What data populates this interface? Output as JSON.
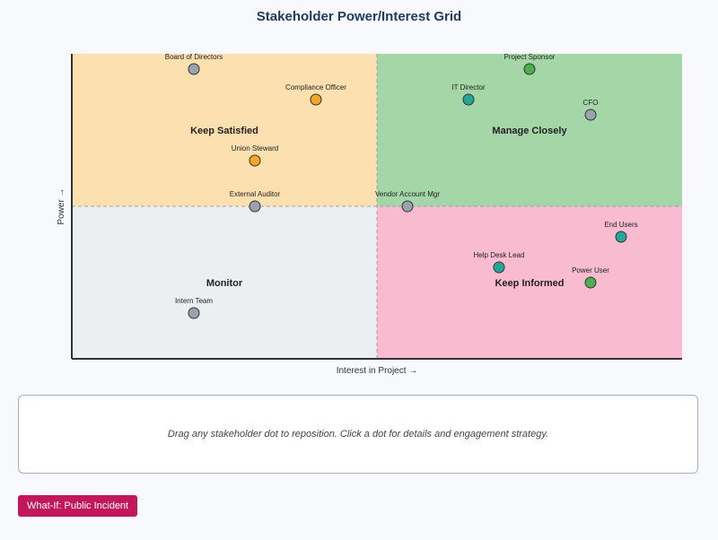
{
  "title": "Stakeholder Power/Interest Grid",
  "axes": {
    "x_label": "Interest in Project →",
    "y_label": "Power →",
    "x_range": [
      0,
      1
    ],
    "y_range": [
      0,
      1
    ]
  },
  "quadrants": [
    {
      "id": "keep-satisfied",
      "label": "Keep Satisfied",
      "color": "#fde0b0"
    },
    {
      "id": "manage-closely",
      "label": "Manage Closely",
      "color": "#a5d6a7"
    },
    {
      "id": "monitor",
      "label": "Monitor",
      "color": "#eceff1"
    },
    {
      "id": "keep-informed",
      "label": "Keep Informed",
      "color": "#f8bbd0"
    }
  ],
  "colors": {
    "gray": "#9aa3ad",
    "orange": "#f5a623",
    "green": "#4caf50",
    "teal": "#26a69a"
  },
  "stakeholders": [
    {
      "name": "Board of Directors",
      "interest": 0.4,
      "power": 0.95,
      "color": "gray"
    },
    {
      "name": "Compliance Officer",
      "interest": 0.8,
      "power": 0.85,
      "color": "orange"
    },
    {
      "name": "Union Steward",
      "interest": 0.6,
      "power": 0.65,
      "color": "orange"
    },
    {
      "name": "External Auditor",
      "interest": 0.6,
      "power": 0.5,
      "color": "gray"
    },
    {
      "name": "Project Sponsor",
      "interest": 1.5,
      "power": 0.95,
      "color": "green"
    },
    {
      "name": "IT Director",
      "interest": 1.3,
      "power": 0.85,
      "color": "teal"
    },
    {
      "name": "CFO",
      "interest": 1.7,
      "power": 0.8,
      "color": "gray"
    },
    {
      "name": "Vendor Account Mgr",
      "interest": 1.1,
      "power": 0.5,
      "color": "gray"
    },
    {
      "name": "End Users",
      "interest": 1.8,
      "power": 0.4,
      "color": "teal"
    },
    {
      "name": "Help Desk Lead",
      "interest": 1.4,
      "power": 0.3,
      "color": "teal"
    },
    {
      "name": "Power User",
      "interest": 1.7,
      "power": 0.25,
      "color": "green"
    },
    {
      "name": "Intern Team",
      "interest": 0.4,
      "power": 0.15,
      "color": "gray"
    }
  ],
  "info_panel": {
    "text": "Drag any stakeholder dot to reposition. Click a dot for details and engagement strategy."
  },
  "buttons": {
    "whatif": "What-If: Public Incident"
  }
}
